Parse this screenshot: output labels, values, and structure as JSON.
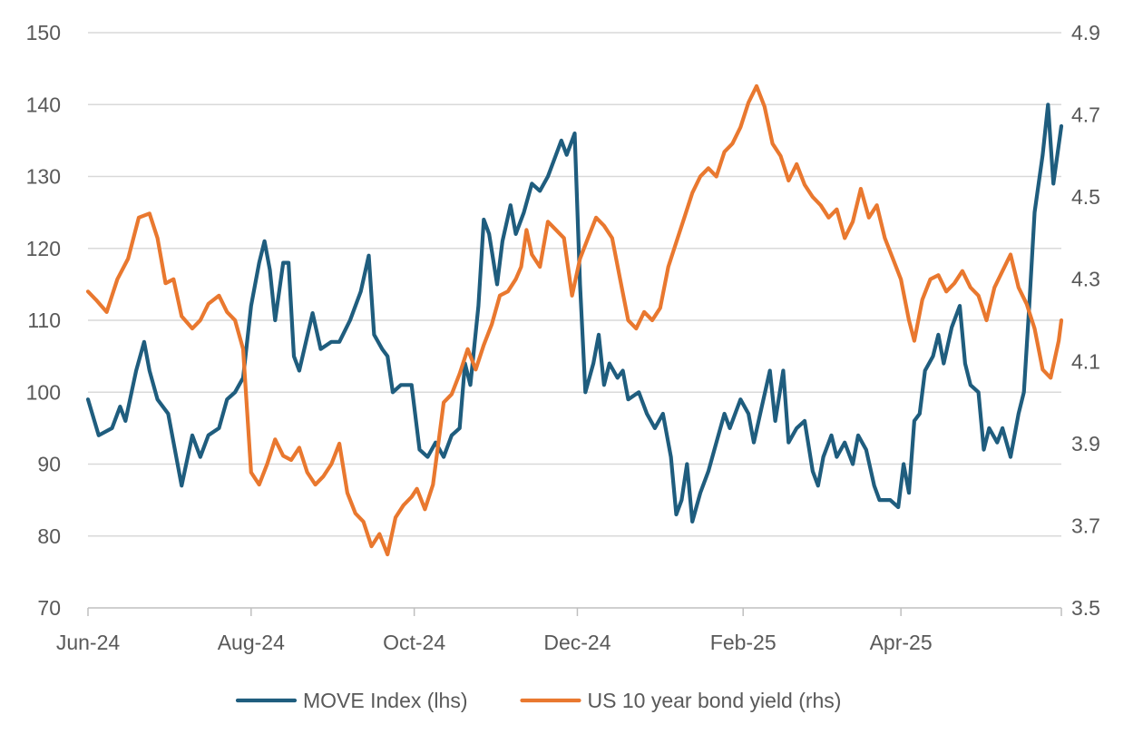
{
  "chart_data": {
    "type": "line",
    "title": "",
    "xlabel": "",
    "ylabel": "",
    "x_start": "2024-06-01",
    "x_end": "2025-05-31",
    "x_ticks": [
      {
        "date": "2024-06-01",
        "label": "Jun-24"
      },
      {
        "date": "2024-08-01",
        "label": "Aug-24"
      },
      {
        "date": "2024-10-01",
        "label": "Oct-24"
      },
      {
        "date": "2024-12-01",
        "label": "Dec-24"
      },
      {
        "date": "2025-02-01",
        "label": "Feb-25"
      },
      {
        "date": "2025-04-01",
        "label": "Apr-25"
      }
    ],
    "y_left": {
      "min": 70,
      "max": 150,
      "ticks": [
        70,
        80,
        90,
        100,
        110,
        120,
        130,
        140,
        150
      ]
    },
    "y_right": {
      "min": 3.5,
      "max": 4.9,
      "ticks": [
        "3.5",
        "3.7",
        "3.9",
        "4.1",
        "4.3",
        "4.5",
        "4.7",
        "4.9"
      ]
    },
    "grid": true,
    "legend_position": "bottom",
    "series": [
      {
        "name": "MOVE Index (lhs)",
        "axis": "left",
        "color": "#1F5D7E",
        "points": [
          [
            "2024-06-01",
            99
          ],
          [
            "2024-06-05",
            94
          ],
          [
            "2024-06-10",
            95
          ],
          [
            "2024-06-13",
            98
          ],
          [
            "2024-06-15",
            96
          ],
          [
            "2024-06-19",
            103
          ],
          [
            "2024-06-22",
            107
          ],
          [
            "2024-06-24",
            103
          ],
          [
            "2024-06-27",
            99
          ],
          [
            "2024-07-01",
            97
          ],
          [
            "2024-07-04",
            91
          ],
          [
            "2024-07-06",
            87
          ],
          [
            "2024-07-10",
            94
          ],
          [
            "2024-07-13",
            91
          ],
          [
            "2024-07-16",
            94
          ],
          [
            "2024-07-20",
            95
          ],
          [
            "2024-07-23",
            99
          ],
          [
            "2024-07-26",
            100
          ],
          [
            "2024-07-29",
            102
          ],
          [
            "2024-08-01",
            112
          ],
          [
            "2024-08-04",
            118
          ],
          [
            "2024-08-06",
            121
          ],
          [
            "2024-08-08",
            117
          ],
          [
            "2024-08-10",
            110
          ],
          [
            "2024-08-13",
            118
          ],
          [
            "2024-08-15",
            118
          ],
          [
            "2024-08-17",
            105
          ],
          [
            "2024-08-19",
            103
          ],
          [
            "2024-08-24",
            111
          ],
          [
            "2024-08-27",
            106
          ],
          [
            "2024-08-31",
            107
          ],
          [
            "2024-09-03",
            107
          ],
          [
            "2024-09-07",
            110
          ],
          [
            "2024-09-11",
            114
          ],
          [
            "2024-09-14",
            119
          ],
          [
            "2024-09-16",
            108
          ],
          [
            "2024-09-19",
            106
          ],
          [
            "2024-09-21",
            105
          ],
          [
            "2024-09-23",
            100
          ],
          [
            "2024-09-26",
            101
          ],
          [
            "2024-09-30",
            101
          ],
          [
            "2024-10-03",
            92
          ],
          [
            "2024-10-06",
            91
          ],
          [
            "2024-10-09",
            93
          ],
          [
            "2024-10-12",
            91
          ],
          [
            "2024-10-15",
            94
          ],
          [
            "2024-10-18",
            95
          ],
          [
            "2024-10-20",
            104
          ],
          [
            "2024-10-22",
            101
          ],
          [
            "2024-10-25",
            112
          ],
          [
            "2024-10-27",
            124
          ],
          [
            "2024-10-29",
            122
          ],
          [
            "2024-11-01",
            115
          ],
          [
            "2024-11-03",
            121
          ],
          [
            "2024-11-06",
            126
          ],
          [
            "2024-11-08",
            122
          ],
          [
            "2024-11-11",
            125
          ],
          [
            "2024-11-14",
            129
          ],
          [
            "2024-11-17",
            128
          ],
          [
            "2024-11-20",
            130
          ],
          [
            "2024-11-23",
            133
          ],
          [
            "2024-11-25",
            135
          ],
          [
            "2024-11-27",
            133
          ],
          [
            "2024-11-30",
            136
          ],
          [
            "2024-12-02",
            115
          ],
          [
            "2024-12-04",
            100
          ],
          [
            "2024-12-07",
            104
          ],
          [
            "2024-12-09",
            108
          ],
          [
            "2024-12-11",
            101
          ],
          [
            "2024-12-13",
            104
          ],
          [
            "2024-12-16",
            102
          ],
          [
            "2024-12-18",
            103
          ],
          [
            "2024-12-20",
            99
          ],
          [
            "2024-12-24",
            100
          ],
          [
            "2024-12-27",
            97
          ],
          [
            "2024-12-30",
            95
          ],
          [
            "2025-01-02",
            97
          ],
          [
            "2025-01-05",
            91
          ],
          [
            "2025-01-07",
            83
          ],
          [
            "2025-01-09",
            85
          ],
          [
            "2025-01-11",
            90
          ],
          [
            "2025-01-13",
            82
          ],
          [
            "2025-01-16",
            86
          ],
          [
            "2025-01-19",
            89
          ],
          [
            "2025-01-22",
            93
          ],
          [
            "2025-01-25",
            97
          ],
          [
            "2025-01-27",
            95
          ],
          [
            "2025-01-31",
            99
          ],
          [
            "2025-02-03",
            97
          ],
          [
            "2025-02-05",
            93
          ],
          [
            "2025-02-08",
            98
          ],
          [
            "2025-02-11",
            103
          ],
          [
            "2025-02-13",
            96
          ],
          [
            "2025-02-16",
            103
          ],
          [
            "2025-02-18",
            93
          ],
          [
            "2025-02-21",
            95
          ],
          [
            "2025-02-24",
            96
          ],
          [
            "2025-02-27",
            89
          ],
          [
            "2025-03-01",
            87
          ],
          [
            "2025-03-03",
            91
          ],
          [
            "2025-03-06",
            94
          ],
          [
            "2025-03-08",
            91
          ],
          [
            "2025-03-11",
            93
          ],
          [
            "2025-03-14",
            90
          ],
          [
            "2025-03-16",
            94
          ],
          [
            "2025-03-19",
            92
          ],
          [
            "2025-03-22",
            87
          ],
          [
            "2025-03-24",
            85
          ],
          [
            "2025-03-28",
            85
          ],
          [
            "2025-03-31",
            84
          ],
          [
            "2025-04-02",
            90
          ],
          [
            "2025-04-04",
            86
          ],
          [
            "2025-04-06",
            96
          ],
          [
            "2025-04-08",
            97
          ],
          [
            "2025-04-10",
            103
          ],
          [
            "2025-04-13",
            105
          ],
          [
            "2025-04-15",
            108
          ],
          [
            "2025-04-17",
            104
          ],
          [
            "2025-04-20",
            109
          ],
          [
            "2025-04-23",
            112
          ],
          [
            "2025-04-25",
            104
          ],
          [
            "2025-04-27",
            101
          ],
          [
            "2025-04-30",
            100
          ],
          [
            "2025-05-02",
            92
          ],
          [
            "2025-05-04",
            95
          ],
          [
            "2025-05-07",
            93
          ],
          [
            "2025-05-09",
            95
          ],
          [
            "2025-05-12",
            91
          ],
          [
            "2025-05-15",
            97
          ],
          [
            "2025-05-17",
            100
          ],
          [
            "2025-05-19",
            112
          ],
          [
            "2025-05-21",
            125
          ],
          [
            "2025-05-24",
            133
          ],
          [
            "2025-05-26",
            140
          ],
          [
            "2025-05-28",
            129
          ],
          [
            "2025-05-31",
            137
          ]
        ]
      },
      {
        "name": "US 10 year bond yield (rhs)",
        "axis": "right",
        "color": "#E9782F",
        "points": [
          [
            "2024-06-01",
            4.27
          ],
          [
            "2024-06-04",
            4.25
          ],
          [
            "2024-06-08",
            4.22
          ],
          [
            "2024-06-12",
            4.3
          ],
          [
            "2024-06-16",
            4.35
          ],
          [
            "2024-06-20",
            4.45
          ],
          [
            "2024-06-24",
            4.46
          ],
          [
            "2024-06-27",
            4.4
          ],
          [
            "2024-06-30",
            4.29
          ],
          [
            "2024-07-03",
            4.3
          ],
          [
            "2024-07-06",
            4.21
          ],
          [
            "2024-07-10",
            4.18
          ],
          [
            "2024-07-13",
            4.2
          ],
          [
            "2024-07-16",
            4.24
          ],
          [
            "2024-07-20",
            4.26
          ],
          [
            "2024-07-23",
            4.22
          ],
          [
            "2024-07-26",
            4.2
          ],
          [
            "2024-07-29",
            4.13
          ],
          [
            "2024-08-01",
            3.83
          ],
          [
            "2024-08-04",
            3.8
          ],
          [
            "2024-08-07",
            3.85
          ],
          [
            "2024-08-10",
            3.91
          ],
          [
            "2024-08-13",
            3.87
          ],
          [
            "2024-08-16",
            3.86
          ],
          [
            "2024-08-19",
            3.89
          ],
          [
            "2024-08-22",
            3.83
          ],
          [
            "2024-08-25",
            3.8
          ],
          [
            "2024-08-28",
            3.82
          ],
          [
            "2024-08-31",
            3.85
          ],
          [
            "2024-09-03",
            3.9
          ],
          [
            "2024-09-06",
            3.78
          ],
          [
            "2024-09-09",
            3.73
          ],
          [
            "2024-09-12",
            3.71
          ],
          [
            "2024-09-15",
            3.65
          ],
          [
            "2024-09-18",
            3.68
          ],
          [
            "2024-09-21",
            3.63
          ],
          [
            "2024-09-24",
            3.72
          ],
          [
            "2024-09-27",
            3.75
          ],
          [
            "2024-09-30",
            3.77
          ],
          [
            "2024-10-02",
            3.79
          ],
          [
            "2024-10-05",
            3.74
          ],
          [
            "2024-10-08",
            3.8
          ],
          [
            "2024-10-12",
            4.0
          ],
          [
            "2024-10-15",
            4.02
          ],
          [
            "2024-10-18",
            4.07
          ],
          [
            "2024-10-21",
            4.13
          ],
          [
            "2024-10-24",
            4.08
          ],
          [
            "2024-10-27",
            4.14
          ],
          [
            "2024-10-30",
            4.19
          ],
          [
            "2024-11-02",
            4.26
          ],
          [
            "2024-11-05",
            4.27
          ],
          [
            "2024-11-08",
            4.3
          ],
          [
            "2024-11-10",
            4.33
          ],
          [
            "2024-11-12",
            4.42
          ],
          [
            "2024-11-14",
            4.36
          ],
          [
            "2024-11-17",
            4.33
          ],
          [
            "2024-11-20",
            4.44
          ],
          [
            "2024-11-23",
            4.42
          ],
          [
            "2024-11-26",
            4.4
          ],
          [
            "2024-11-29",
            4.26
          ],
          [
            "2024-12-02",
            4.35
          ],
          [
            "2024-12-05",
            4.4
          ],
          [
            "2024-12-08",
            4.45
          ],
          [
            "2024-12-11",
            4.43
          ],
          [
            "2024-12-14",
            4.4
          ],
          [
            "2024-12-17",
            4.3
          ],
          [
            "2024-12-20",
            4.2
          ],
          [
            "2024-12-23",
            4.18
          ],
          [
            "2024-12-26",
            4.22
          ],
          [
            "2024-12-29",
            4.2
          ],
          [
            "2025-01-01",
            4.23
          ],
          [
            "2025-01-04",
            4.33
          ],
          [
            "2025-01-07",
            4.39
          ],
          [
            "2025-01-10",
            4.45
          ],
          [
            "2025-01-13",
            4.51
          ],
          [
            "2025-01-16",
            4.55
          ],
          [
            "2025-01-19",
            4.57
          ],
          [
            "2025-01-22",
            4.55
          ],
          [
            "2025-01-25",
            4.61
          ],
          [
            "2025-01-28",
            4.63
          ],
          [
            "2025-01-31",
            4.67
          ],
          [
            "2025-02-03",
            4.73
          ],
          [
            "2025-02-06",
            4.77
          ],
          [
            "2025-02-09",
            4.72
          ],
          [
            "2025-02-12",
            4.63
          ],
          [
            "2025-02-15",
            4.6
          ],
          [
            "2025-02-18",
            4.54
          ],
          [
            "2025-02-21",
            4.58
          ],
          [
            "2025-02-24",
            4.53
          ],
          [
            "2025-02-27",
            4.5
          ],
          [
            "2025-03-02",
            4.48
          ],
          [
            "2025-03-05",
            4.45
          ],
          [
            "2025-03-08",
            4.47
          ],
          [
            "2025-03-11",
            4.4
          ],
          [
            "2025-03-14",
            4.44
          ],
          [
            "2025-03-17",
            4.52
          ],
          [
            "2025-03-20",
            4.45
          ],
          [
            "2025-03-23",
            4.48
          ],
          [
            "2025-03-26",
            4.4
          ],
          [
            "2025-03-29",
            4.35
          ],
          [
            "2025-04-01",
            4.3
          ],
          [
            "2025-04-04",
            4.2
          ],
          [
            "2025-04-06",
            4.15
          ],
          [
            "2025-04-09",
            4.25
          ],
          [
            "2025-04-12",
            4.3
          ],
          [
            "2025-04-15",
            4.31
          ],
          [
            "2025-04-18",
            4.27
          ],
          [
            "2025-04-21",
            4.29
          ],
          [
            "2025-04-24",
            4.32
          ],
          [
            "2025-04-27",
            4.28
          ],
          [
            "2025-04-30",
            4.26
          ],
          [
            "2025-05-03",
            4.2
          ],
          [
            "2025-05-06",
            4.28
          ],
          [
            "2025-05-09",
            4.32
          ],
          [
            "2025-05-12",
            4.36
          ],
          [
            "2025-05-15",
            4.28
          ],
          [
            "2025-05-18",
            4.24
          ],
          [
            "2025-05-21",
            4.18
          ],
          [
            "2025-05-24",
            4.08
          ],
          [
            "2025-05-27",
            4.06
          ],
          [
            "2025-05-30",
            4.15
          ],
          [
            "2025-05-31",
            4.2
          ]
        ]
      }
    ]
  }
}
